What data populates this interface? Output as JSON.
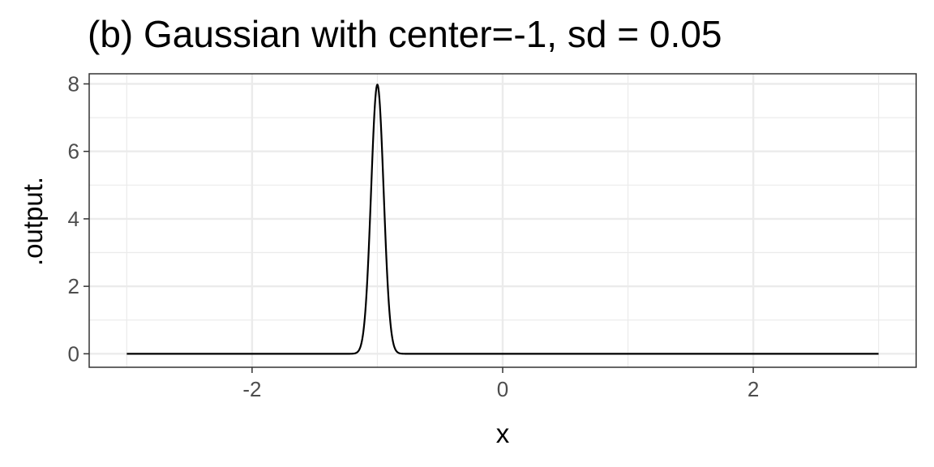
{
  "chart_data": {
    "type": "line",
    "title": "(b) Gaussian with center=-1, sd = 0.05",
    "xlabel": "x",
    "ylabel": ".output.",
    "xlim": [
      -3.3,
      3.3
    ],
    "ylim": [
      -0.4,
      8.3
    ],
    "x_ticks": [
      -2,
      0,
      2
    ],
    "x_minor_ticks": [
      -3,
      -1,
      1,
      3
    ],
    "y_ticks": [
      0,
      2,
      4,
      6,
      8
    ],
    "y_minor_ticks": [
      1,
      3,
      5,
      7
    ],
    "x_range": [
      -3,
      3
    ],
    "grid": true,
    "legend": "none",
    "series": [
      {
        "function": "gaussian",
        "center": -1,
        "sd": 0.05,
        "color": "#000000"
      }
    ]
  },
  "colors": {
    "background": "#ffffff",
    "grid": "#ebebeb",
    "panel_border": "#333333",
    "line": "#000000"
  }
}
